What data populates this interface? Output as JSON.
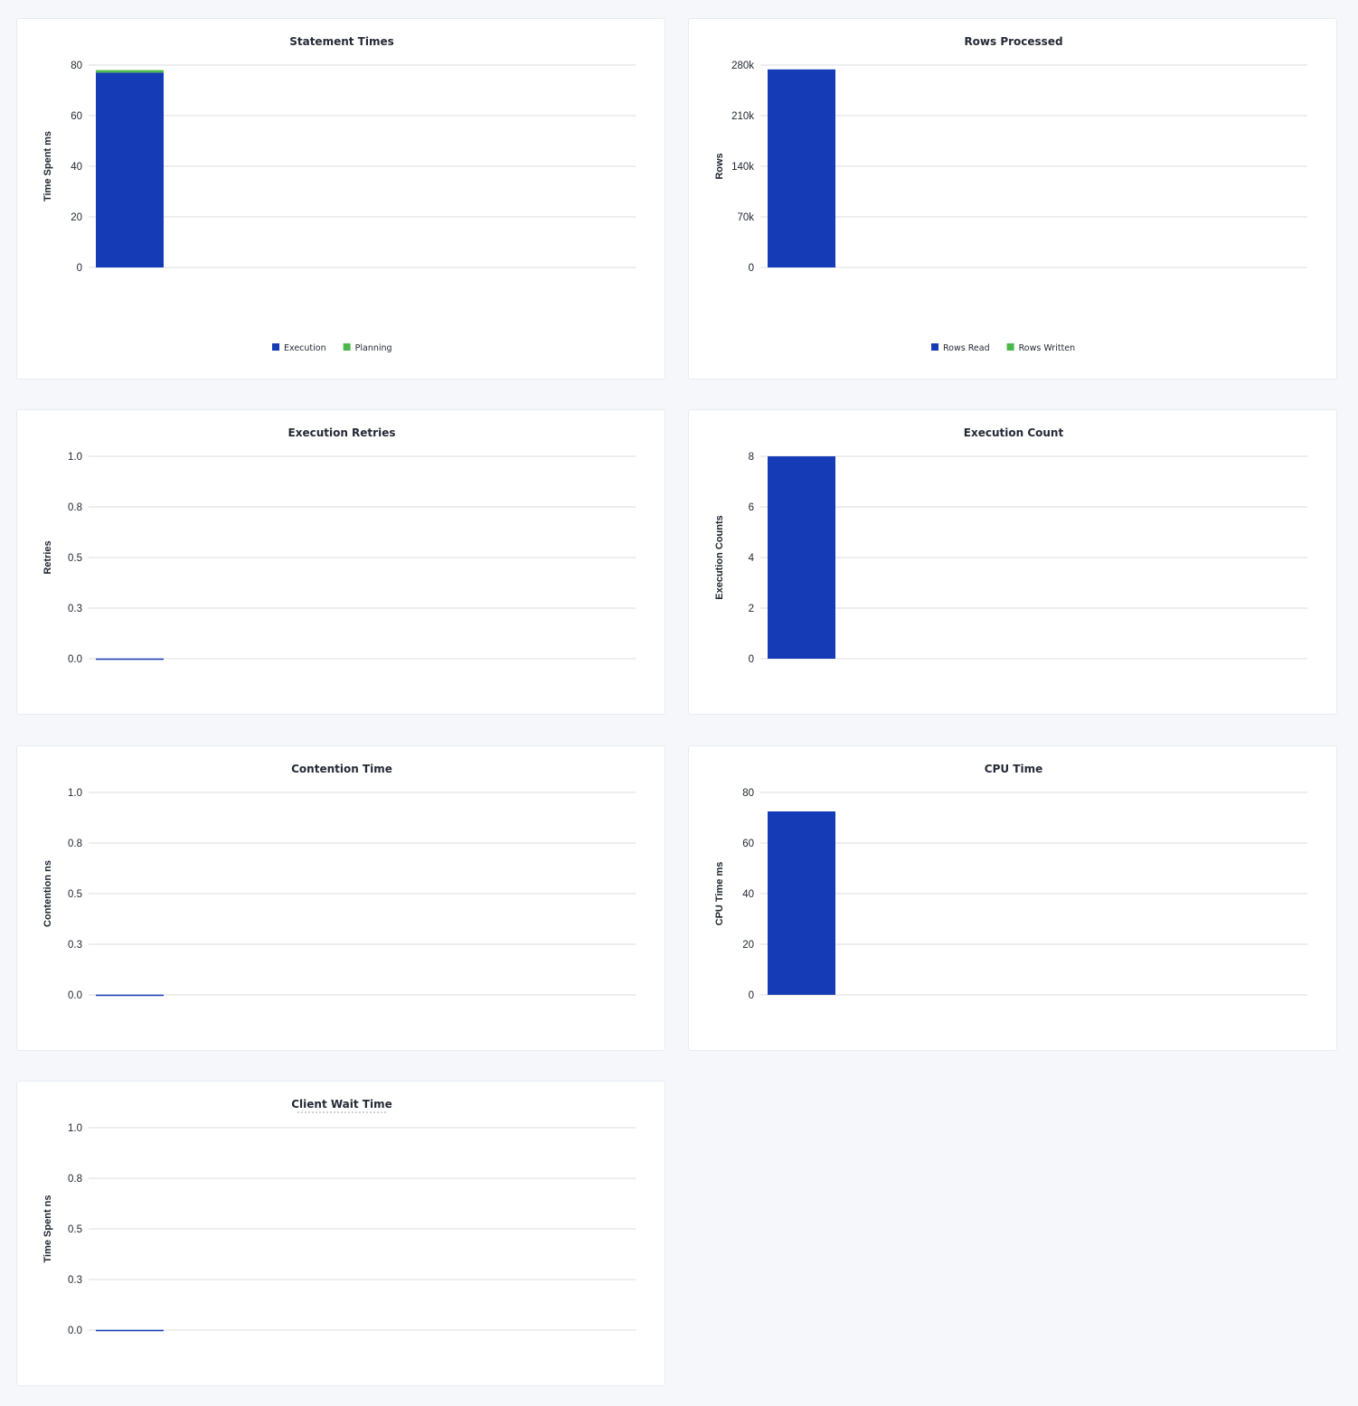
{
  "colors": {
    "primary": "#163bb6",
    "secondary": "#4bb84b",
    "grid": "#e8e8e8"
  },
  "chart_data": [
    {
      "type": "bar",
      "stacked": true,
      "title": "Statement Times",
      "ylabel": "Time Spent ms",
      "ylim": [
        0,
        80
      ],
      "yticks": [
        "0",
        "20",
        "40",
        "60",
        "80"
      ],
      "tickvals": [
        0,
        20,
        40,
        60,
        80
      ],
      "categories": [
        ""
      ],
      "series": [
        {
          "name": "Execution",
          "values": [
            77
          ]
        },
        {
          "name": "Planning",
          "values": [
            1
          ]
        }
      ],
      "legend": "bottom",
      "grid": true
    },
    {
      "type": "bar",
      "stacked": true,
      "title": "Rows Processed",
      "ylabel": "Rows",
      "ylim": [
        0,
        280000
      ],
      "yticks": [
        "0",
        "70k",
        "140k",
        "210k",
        "280k"
      ],
      "tickvals": [
        0,
        70000,
        140000,
        210000,
        280000
      ],
      "categories": [
        ""
      ],
      "series": [
        {
          "name": "Rows Read",
          "values": [
            274000
          ]
        },
        {
          "name": "Rows Written",
          "values": [
            0
          ]
        }
      ],
      "legend": "bottom",
      "grid": true
    },
    {
      "type": "bar",
      "title": "Execution Retries",
      "ylabel": "Retries",
      "ylim": [
        0,
        1
      ],
      "yticks": [
        "0.0",
        "0.3",
        "0.5",
        "0.8",
        "1.0"
      ],
      "tickvals": [
        0,
        0.25,
        0.5,
        0.75,
        1
      ],
      "categories": [
        ""
      ],
      "series": [
        {
          "values": [
            0
          ]
        }
      ],
      "grid": true
    },
    {
      "type": "bar",
      "title": "Execution Count",
      "ylabel": "Execution Counts",
      "ylim": [
        0,
        8
      ],
      "yticks": [
        "0",
        "2",
        "4",
        "6",
        "8"
      ],
      "tickvals": [
        0,
        2,
        4,
        6,
        8
      ],
      "categories": [
        ""
      ],
      "series": [
        {
          "values": [
            8
          ]
        }
      ],
      "grid": true
    },
    {
      "type": "bar",
      "title": "Contention Time",
      "ylabel": "Contention ns",
      "ylim": [
        0,
        1
      ],
      "yticks": [
        "0.0",
        "0.3",
        "0.5",
        "0.8",
        "1.0"
      ],
      "tickvals": [
        0,
        0.25,
        0.5,
        0.75,
        1
      ],
      "categories": [
        ""
      ],
      "series": [
        {
          "values": [
            0
          ]
        }
      ],
      "grid": true
    },
    {
      "type": "bar",
      "title": "CPU Time",
      "ylabel": "CPU Time ms",
      "ylim": [
        0,
        80
      ],
      "yticks": [
        "0",
        "20",
        "40",
        "60",
        "80"
      ],
      "tickvals": [
        0,
        20,
        40,
        60,
        80
      ],
      "categories": [
        ""
      ],
      "series": [
        {
          "values": [
            72.5
          ]
        }
      ],
      "grid": true
    },
    {
      "type": "bar",
      "title": "Client Wait Time",
      "ylabel": "Time Spent ns",
      "ylim": [
        0,
        1
      ],
      "yticks": [
        "0.0",
        "0.3",
        "0.5",
        "0.8",
        "1.0"
      ],
      "tickvals": [
        0,
        0.25,
        0.5,
        0.75,
        1
      ],
      "categories": [
        ""
      ],
      "series": [
        {
          "values": [
            0
          ]
        }
      ],
      "grid": true,
      "title_underlined": true
    }
  ]
}
